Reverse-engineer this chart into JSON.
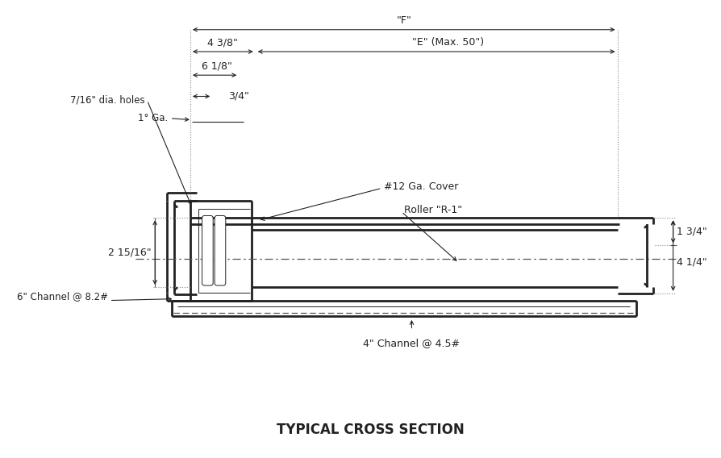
{
  "title": "TYPICAL CROSS SECTION",
  "bg_color": "#ffffff",
  "lc": "#222222",
  "title_fontsize": 12,
  "annotations": {
    "F_label": "\"F\"",
    "E_label": "\"E\" (Max. 50\")",
    "dim_4_3_8": "4 3/8\"",
    "dim_6_1_8": "6 1/8\"",
    "dim_3_4": "3/4\"",
    "dim_holes": "7/16\" dia. holes",
    "dim_1ga": "1° Ga.",
    "dim_2_15_16": "2 15/16\"",
    "dim_1_3_4": "1 3/4\"",
    "dim_4_1_4": "4 1/4\"",
    "label_cover": "#12 Ga. Cover",
    "label_roller": "Roller \"R-1\"",
    "label_6ch": "6\" Channel @ 8.2#",
    "label_4ch": "4\" Channel @ 4.5#"
  },
  "layout": {
    "fig_w": 8.94,
    "fig_h": 5.68,
    "dpi": 100,
    "xmin": 0,
    "xmax": 894,
    "ymin": 0,
    "ymax": 568
  }
}
